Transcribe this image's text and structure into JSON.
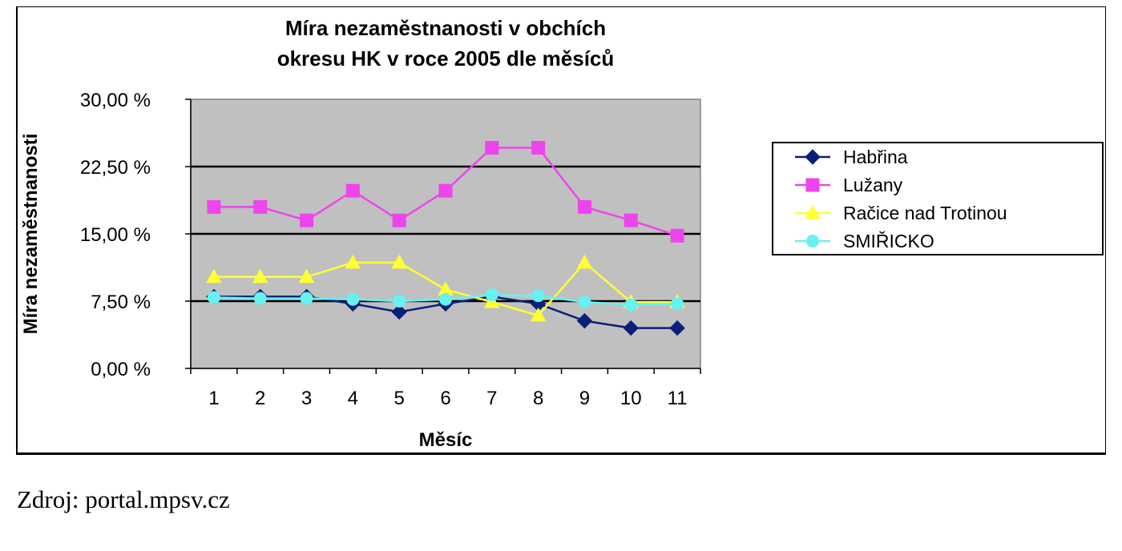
{
  "chart_data": {
    "type": "line",
    "title_lines": [
      "Míra nezaměstnanosti v obchích",
      "okresu HK v roce 2005 dle měsíců"
    ],
    "xlabel": "Měsíc",
    "ylabel": "Míra nezaměstnanosti",
    "categories": [
      "1",
      "2",
      "3",
      "4",
      "5",
      "6",
      "7",
      "8",
      "9",
      "10",
      "11"
    ],
    "ylim": [
      0,
      30
    ],
    "yticks": [
      0,
      7.5,
      15,
      22.5,
      30
    ],
    "ytick_labels": [
      "0,00 %",
      "7,50 %",
      "15,00 %",
      "22,50 %",
      "30,00 %"
    ],
    "grid": "horizontal",
    "legend_position": "right",
    "series": [
      {
        "name": "Habřina",
        "marker": "diamond",
        "color": "#0b1f7a",
        "values": [
          8.0,
          8.0,
          8.0,
          7.2,
          6.3,
          7.2,
          8.0,
          7.2,
          5.3,
          4.5,
          4.5
        ]
      },
      {
        "name": "Lužany",
        "marker": "square",
        "color": "#ee44ee",
        "values": [
          18.0,
          18.0,
          16.5,
          19.8,
          16.5,
          19.8,
          24.6,
          24.6,
          18.0,
          16.5,
          14.8
        ]
      },
      {
        "name": "Račice nad Trotinou",
        "marker": "triangle",
        "color": "#ffff33",
        "values": [
          10.2,
          10.2,
          10.2,
          11.8,
          11.8,
          8.8,
          7.4,
          5.9,
          11.8,
          7.4,
          7.4
        ]
      },
      {
        "name": "SMIŘICKO",
        "marker": "circle",
        "color": "#66f2f2",
        "values": [
          7.9,
          7.8,
          7.8,
          7.7,
          7.5,
          7.7,
          8.2,
          8.1,
          7.4,
          7.1,
          7.2
        ]
      }
    ]
  },
  "source_note": "Zdroj: portal.mpsv.cz"
}
